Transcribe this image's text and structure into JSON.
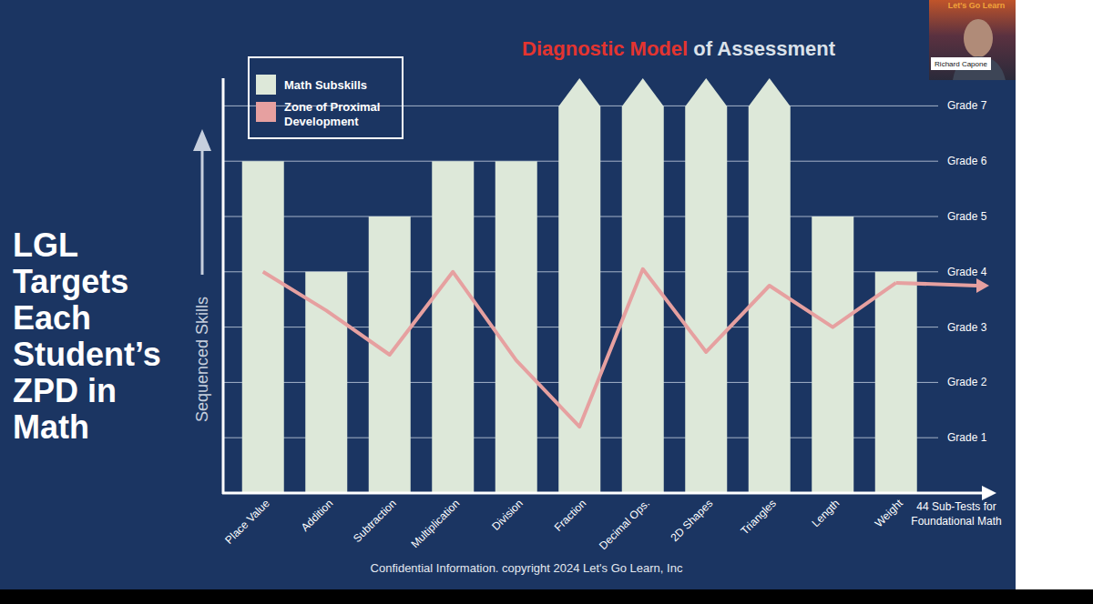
{
  "chart_data": {
    "type": "bar",
    "title": "Diagnostic Model of Assessment",
    "ylabel": "Sequenced Skills",
    "xlabel": "44 Sub-Tests for Foundational Math",
    "categories": [
      "Place Value",
      "Addition",
      "Subtraction",
      "Multiplication",
      "Division",
      "Fraction",
      "Decimal Ops.",
      "2D Shapes",
      "Triangles",
      "Length",
      "Weight"
    ],
    "series": [
      {
        "name": "Math Subskills",
        "type": "bar",
        "color": "#dde8d9",
        "values": [
          6,
          4,
          5,
          6,
          6,
          7.5,
          7.5,
          7.5,
          7.5,
          5,
          4
        ]
      },
      {
        "name": "Zone of Proximal Development",
        "type": "line",
        "color": "#e6a0a0",
        "values": [
          4.0,
          3.3,
          2.5,
          4.0,
          2.4,
          1.2,
          4.05,
          2.55,
          3.75,
          3.0,
          3.8
        ]
      }
    ],
    "ylim": [
      0,
      7.5
    ],
    "yticks": [
      {
        "value": 1,
        "label": "Grade 1"
      },
      {
        "value": 2,
        "label": "Grade 2"
      },
      {
        "value": 3,
        "label": "Grade 3"
      },
      {
        "value": 4,
        "label": "Grade 4"
      },
      {
        "value": 5,
        "label": "Grade 5"
      },
      {
        "value": 6,
        "label": "Grade 6"
      },
      {
        "value": 7,
        "label": "Grade 7"
      }
    ],
    "grid": true,
    "legend": "top-left",
    "annotations": [
      "LGL Targets Each Student’s ZPD in Math",
      "Confidential Information. copyright 2024 Let's Go Learn, Inc"
    ]
  },
  "video": {
    "logo": "Let's Go Learn",
    "speaker": "Richard Capone"
  }
}
